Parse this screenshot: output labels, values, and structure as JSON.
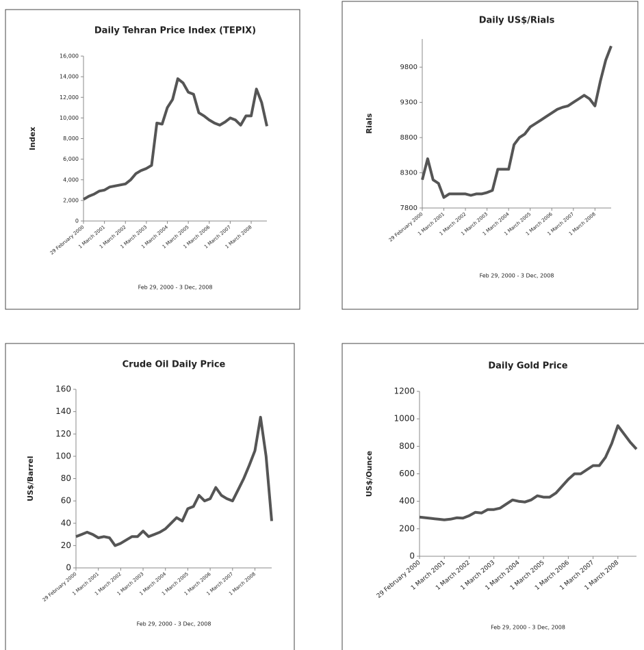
{
  "chart_data": [
    {
      "type": "line",
      "title": "Daily Tehran Price Index (TEPIX)",
      "ylabel": "Index",
      "xlabel": "Feb 29, 2000 -  3 Dec, 2008",
      "color": "#555555",
      "categories": [
        "29 February 2000",
        null,
        null,
        null,
        "1 March 2001",
        null,
        null,
        null,
        "1 March 2002",
        null,
        null,
        null,
        "1 March 2003",
        null,
        null,
        null,
        "1 March 2004",
        null,
        null,
        null,
        "1 March 2005",
        null,
        null,
        null,
        "1 March 2006",
        null,
        null,
        null,
        "1 March 2007",
        null,
        null,
        null,
        "1 March 2008",
        null,
        null,
        null
      ],
      "values": [
        2100,
        2400,
        2600,
        2900,
        3000,
        3300,
        3400,
        3500,
        3600,
        4000,
        4600,
        4900,
        5100,
        5400,
        9500,
        9400,
        11000,
        11800,
        13800,
        13400,
        12500,
        12300,
        10500,
        10200,
        9800,
        9500,
        9300,
        9600,
        10000,
        9800,
        9300,
        10200,
        10200,
        12800,
        11500,
        9200
      ],
      "ylim": [
        0,
        16000
      ],
      "yticks": [
        0,
        {
          "value": 2000,
          "label": "2,000"
        },
        {
          "value": 4000,
          "label": "4,000"
        },
        {
          "value": 6000,
          "label": "6,000"
        },
        {
          "value": 8000,
          "label": "8,000"
        },
        {
          "value": 10000,
          "label": "10,000"
        },
        {
          "value": 12000,
          "label": "12,000"
        },
        {
          "value": 14000,
          "label": "14,000"
        },
        {
          "value": 16000,
          "label": "16,000"
        }
      ]
    },
    {
      "type": "line",
      "title": "Daily US$/Rials",
      "ylabel": "Rials",
      "xlabel": "Feb 29, 2000 -  3 Dec, 2008",
      "color": "#555555",
      "categories": [
        "29 February 2000",
        null,
        null,
        null,
        "1 March 2001",
        null,
        null,
        null,
        "1 March 2002",
        null,
        null,
        null,
        "1 March 2003",
        null,
        null,
        null,
        "1 March 2004",
        null,
        null,
        null,
        "1 March 2005",
        null,
        null,
        null,
        "1 March 2006",
        null,
        null,
        null,
        "1 March 2007",
        null,
        null,
        null,
        "1 March 2008",
        null,
        null,
        null
      ],
      "values": [
        8200,
        8500,
        8200,
        8150,
        7950,
        8000,
        8000,
        8000,
        8000,
        7980,
        8000,
        8000,
        8020,
        8050,
        8350,
        8350,
        8350,
        8700,
        8800,
        8850,
        8950,
        9000,
        9050,
        9100,
        9150,
        9200,
        9230,
        9250,
        9300,
        9350,
        9400,
        9350,
        9250,
        9600,
        9900,
        10100
      ],
      "ylim": [
        7800,
        10200
      ],
      "yticks": [
        7800,
        8300,
        8800,
        9300,
        9800
      ]
    },
    {
      "type": "line",
      "title": "Crude Oil Daily Price",
      "ylabel": "US$/Barrel",
      "xlabel": "Feb 29, 2000 -  3 Dec, 2008",
      "color": "#555555",
      "categories": [
        "29 February 2000",
        null,
        null,
        null,
        "1 March 2001",
        null,
        null,
        null,
        "1 March 2002",
        null,
        null,
        null,
        "1 March 2003",
        null,
        null,
        null,
        "1 March 2004",
        null,
        null,
        null,
        "1 March 2005",
        null,
        null,
        null,
        "1 March 2006",
        null,
        null,
        null,
        "1 March 2007",
        null,
        null,
        null,
        "1 March 2008",
        null,
        null,
        null
      ],
      "values": [
        28,
        30,
        32,
        30,
        27,
        28,
        27,
        20,
        22,
        25,
        28,
        28,
        33,
        28,
        30,
        32,
        35,
        40,
        45,
        42,
        53,
        55,
        65,
        60,
        62,
        72,
        65,
        62,
        60,
        70,
        80,
        92,
        105,
        135,
        100,
        42
      ],
      "ylim": [
        0,
        160
      ],
      "yticks": [
        0,
        20,
        40,
        60,
        80,
        100,
        120,
        140,
        160
      ]
    },
    {
      "type": "line",
      "title": "Daily Gold Price",
      "ylabel": "US$/Ounce",
      "xlabel": "Feb 29, 2000 -  3 Dec, 2008",
      "color": "#555555",
      "categories": [
        "29 February 2000",
        null,
        null,
        null,
        "1 March 2001",
        null,
        null,
        null,
        "1 March 2002",
        null,
        null,
        null,
        "1 March 2003",
        null,
        null,
        null,
        "1 March 2004",
        null,
        null,
        null,
        "1 March 2005",
        null,
        null,
        null,
        "1 March 2006",
        null,
        null,
        null,
        "1 March 2007",
        null,
        null,
        null,
        "1 March 2008",
        null,
        null,
        null
      ],
      "values": [
        285,
        280,
        275,
        270,
        265,
        270,
        280,
        278,
        295,
        320,
        315,
        340,
        340,
        350,
        380,
        410,
        400,
        395,
        410,
        440,
        430,
        430,
        460,
        510,
        560,
        600,
        600,
        630,
        660,
        660,
        720,
        820,
        950,
        890,
        830,
        780
      ],
      "ylim": [
        0,
        1200
      ],
      "yticks": [
        0,
        200,
        400,
        600,
        800,
        1000,
        1200
      ]
    }
  ]
}
